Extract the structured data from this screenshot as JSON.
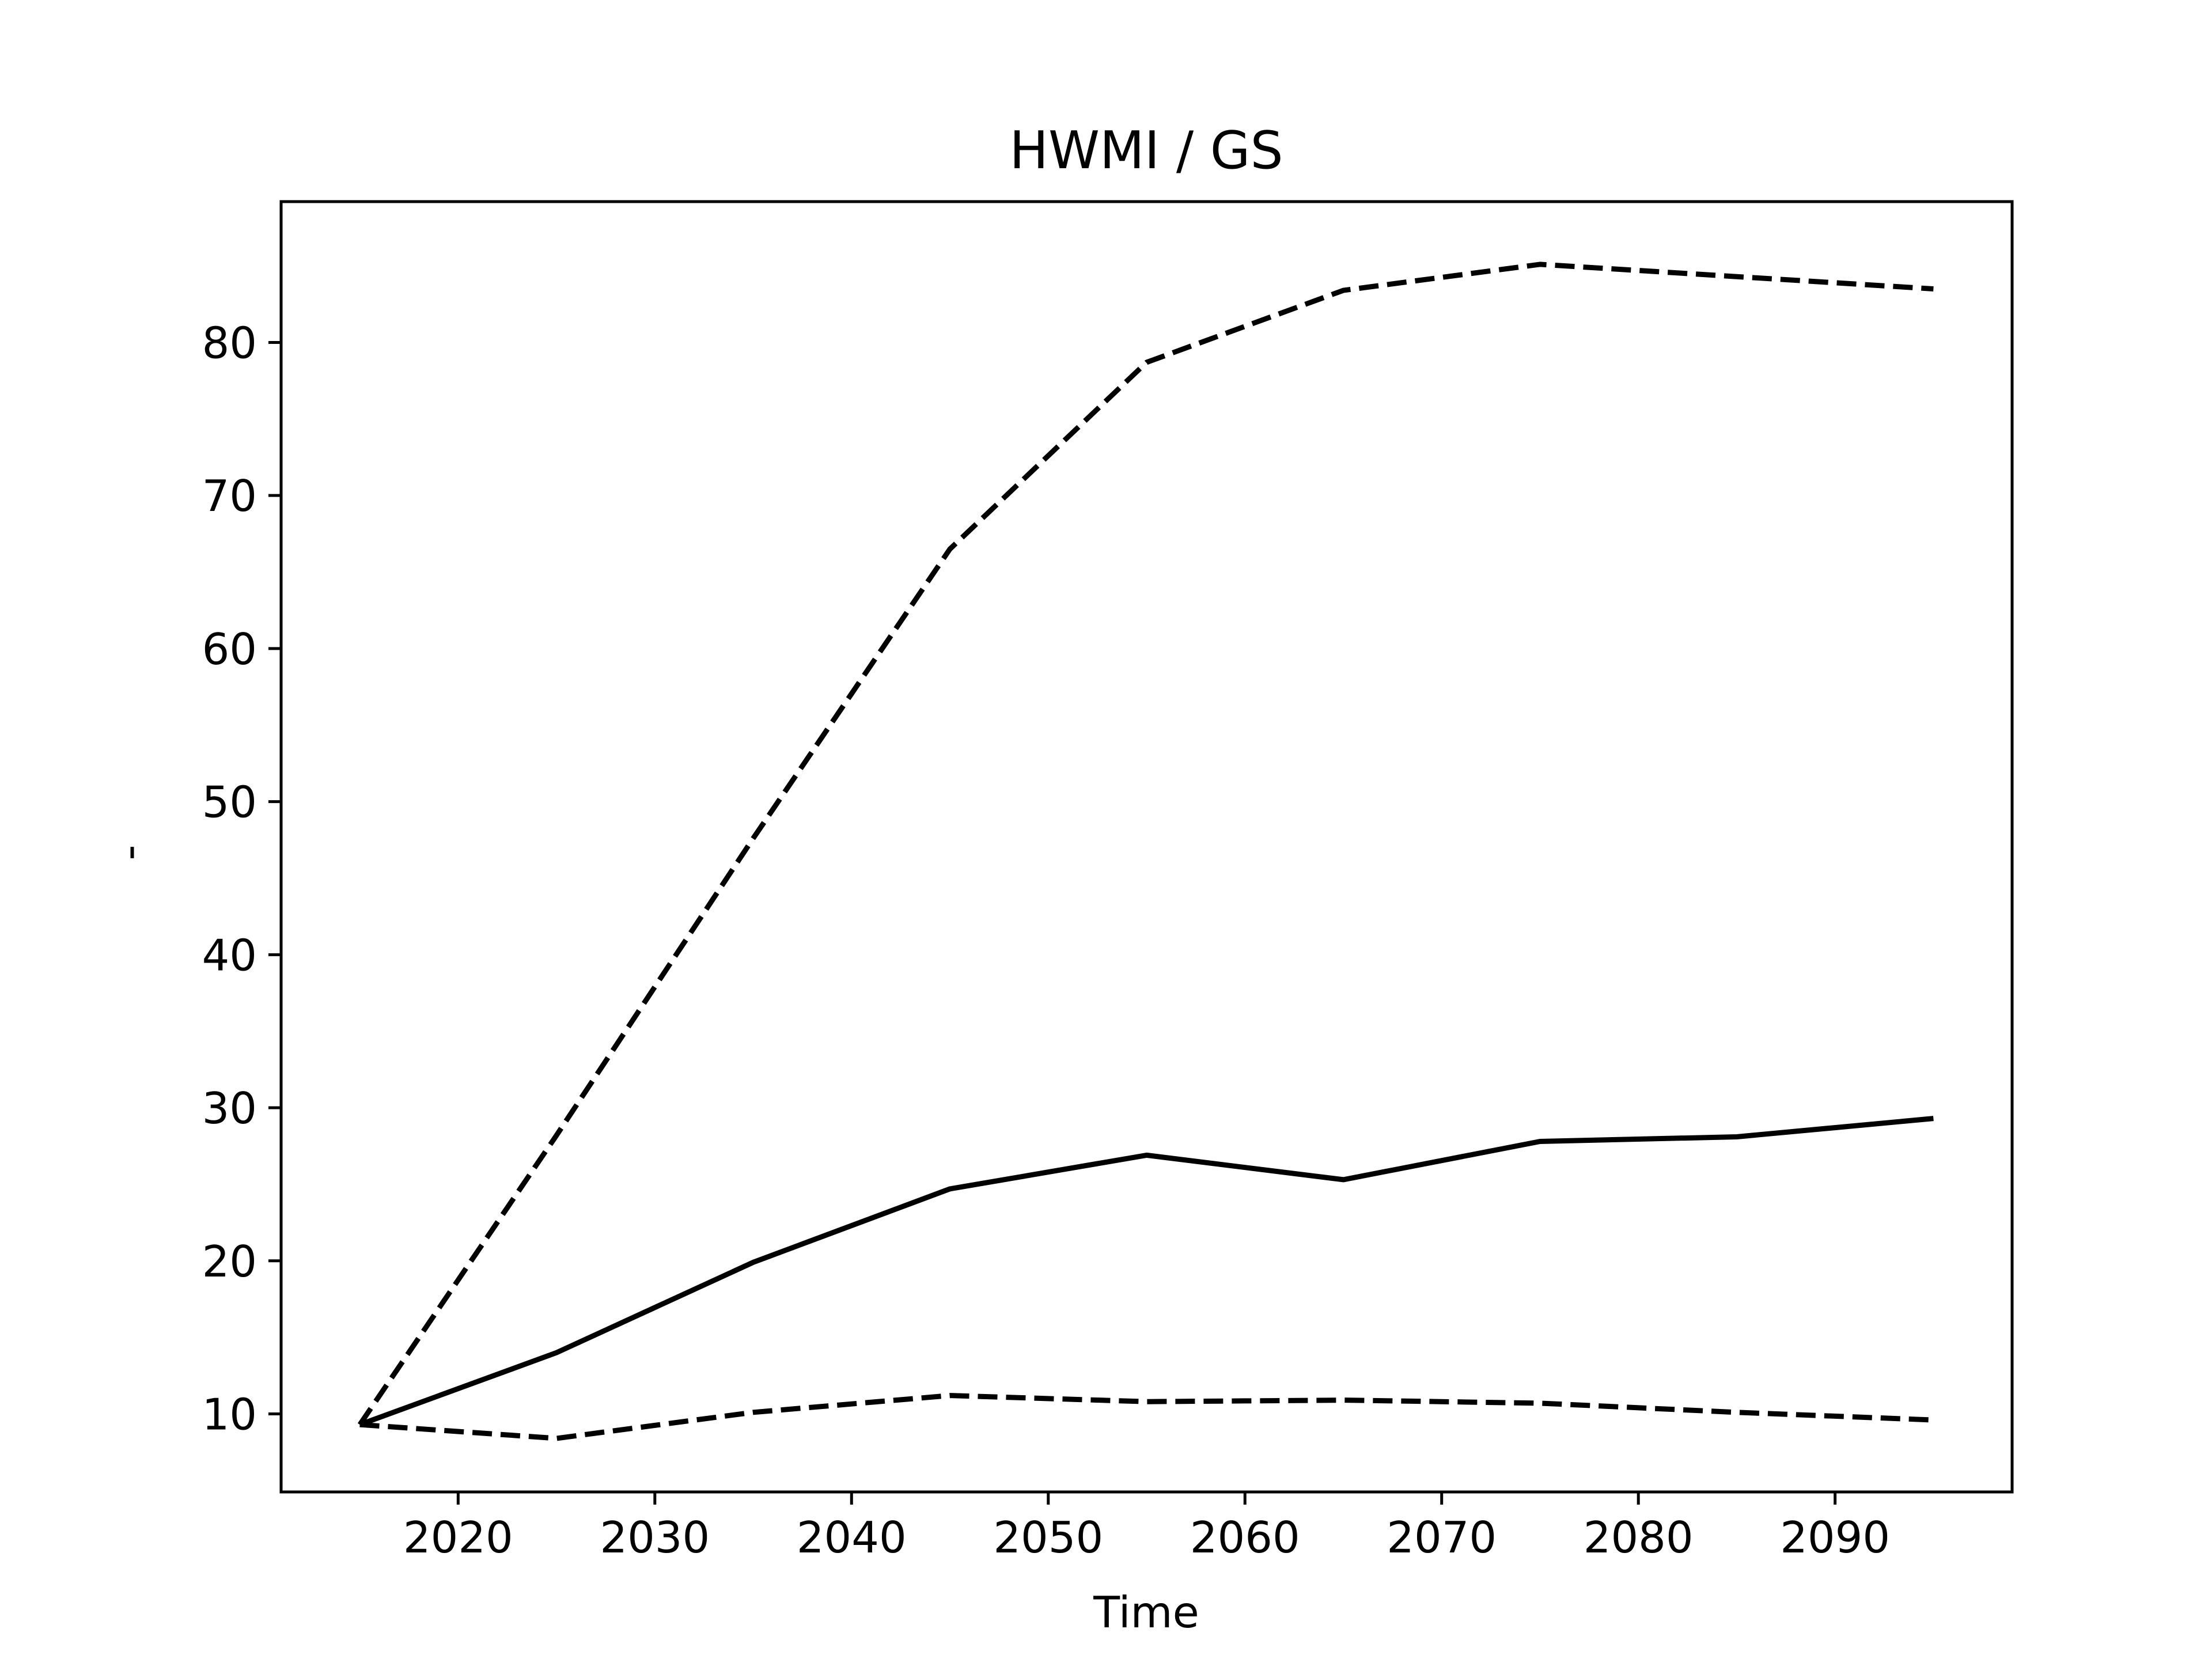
{
  "chart_data": {
    "type": "line",
    "title": "HWMI / GS",
    "xlabel": "Time",
    "ylabel": "-",
    "x": [
      2015,
      2025,
      2035,
      2045,
      2055,
      2065,
      2075,
      2085,
      2095
    ],
    "series": [
      {
        "values": [
          9.3,
          14.0,
          19.9,
          24.7,
          26.9,
          25.3,
          27.8,
          28.1,
          29.3
        ],
        "color": "#000000",
        "style": "solid"
      },
      {
        "values": [
          9.3,
          28.2,
          47.6,
          66.5,
          78.7,
          83.4,
          85.1,
          84.3,
          83.5
        ],
        "color": "#000000",
        "style": "dashed"
      },
      {
        "values": [
          9.3,
          8.4,
          10.1,
          11.2,
          10.8,
          10.9,
          10.7,
          10.1,
          9.6
        ],
        "color": "#000000",
        "style": "dashed"
      }
    ],
    "xlim": [
      2011,
      2099
    ],
    "ylim": [
      4.9,
      89.2
    ],
    "xticks": [
      2020,
      2030,
      2040,
      2050,
      2060,
      2070,
      2080,
      2090
    ],
    "yticks": [
      10,
      20,
      30,
      40,
      50,
      60,
      70,
      80
    ],
    "grid": false,
    "legend": "none"
  }
}
